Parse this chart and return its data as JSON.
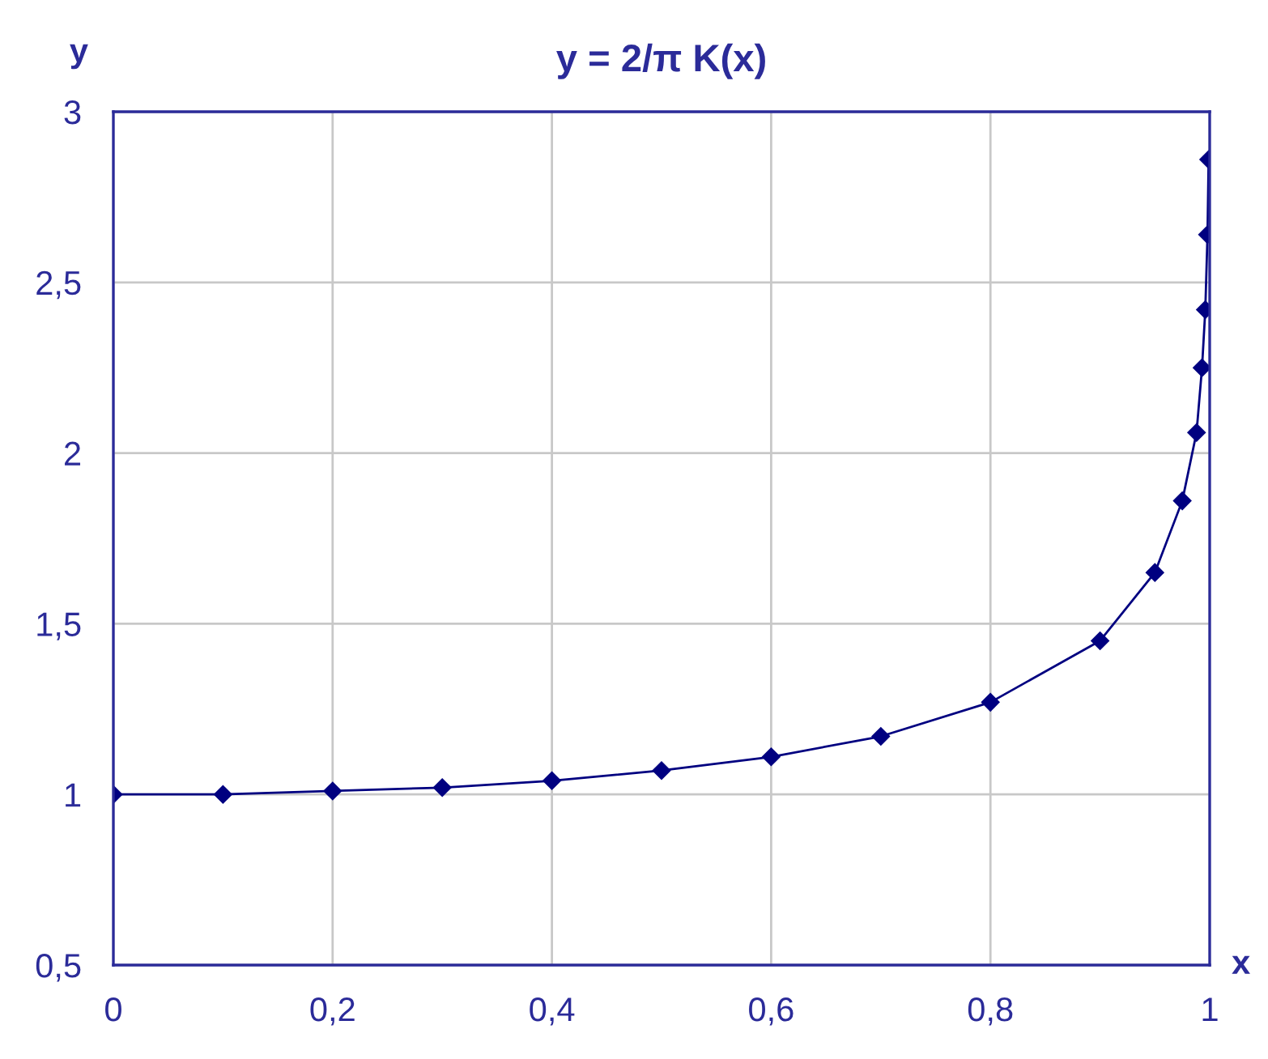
{
  "chart_data": {
    "type": "line",
    "title": "y = 2/π K(x)",
    "xlabel": "x",
    "ylabel": "y",
    "x": [
      0,
      0.1,
      0.2,
      0.3,
      0.4,
      0.5,
      0.6,
      0.7,
      0.8,
      0.9,
      0.95,
      0.975,
      0.988,
      0.993,
      0.996,
      0.998,
      0.999
    ],
    "series": [
      {
        "color": "#000080",
        "values": [
          1.0,
          1.0,
          1.01,
          1.02,
          1.04,
          1.07,
          1.11,
          1.17,
          1.27,
          1.45,
          1.65,
          1.86,
          2.06,
          2.25,
          2.42,
          2.64,
          2.86
        ]
      }
    ],
    "xlim": [
      0,
      1
    ],
    "ylim": [
      0.5,
      3
    ],
    "xticks": [
      0,
      {
        "value": 0.2,
        "label": "0,2"
      },
      {
        "value": 0.4,
        "label": "0,4"
      },
      {
        "value": 0.6,
        "label": "0,6"
      },
      {
        "value": 0.8,
        "label": "0,8"
      },
      1
    ],
    "yticks": [
      {
        "value": 0.5,
        "label": "0,5"
      },
      1,
      {
        "value": 1.5,
        "label": "1,5"
      },
      2,
      {
        "value": 2.5,
        "label": "2,5"
      },
      3
    ],
    "grid": true,
    "marker": "diamond",
    "line_style": "solid",
    "legend": false
  }
}
